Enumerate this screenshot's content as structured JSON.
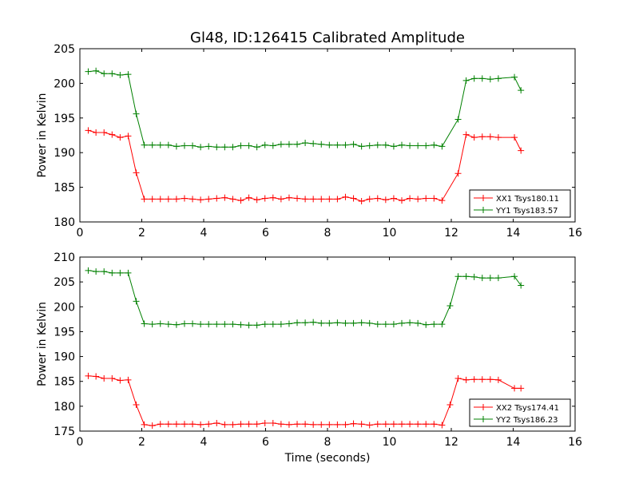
{
  "title": "Gl48, ID:126415 Calibrated Amplitude",
  "xlabel": "Time (seconds)",
  "chart_data": [
    {
      "type": "line",
      "title": "Gl48, ID:126415 Calibrated Amplitude",
      "xlabel": "",
      "ylabel": "Power in Kelvin",
      "xlim": [
        0,
        16
      ],
      "ylim": [
        180,
        205
      ],
      "xticks": [
        0,
        2,
        4,
        6,
        8,
        10,
        12,
        14,
        16
      ],
      "yticks": [
        180,
        185,
        190,
        195,
        200,
        205
      ],
      "grid": false,
      "legend_position": "lower-right",
      "x": [
        0.27,
        0.52,
        0.78,
        1.04,
        1.3,
        1.56,
        1.82,
        2.08,
        2.34,
        2.6,
        2.86,
        3.12,
        3.38,
        3.64,
        3.9,
        4.16,
        4.42,
        4.68,
        4.94,
        5.2,
        5.46,
        5.72,
        5.98,
        6.24,
        6.5,
        6.76,
        7.02,
        7.28,
        7.54,
        7.8,
        8.06,
        8.32,
        8.58,
        8.84,
        9.1,
        9.36,
        9.62,
        9.88,
        10.14,
        10.4,
        10.66,
        10.92,
        11.18,
        11.44,
        11.7,
        11.96,
        12.22,
        12.48,
        12.74,
        13.0,
        13.26,
        13.52,
        13.78,
        14.04,
        14.25
      ],
      "series": [
        {
          "name": "XX1 Tsys180.11",
          "color": "#ff0000",
          "values": [
            193.2,
            192.9,
            192.9,
            192.6,
            192.2,
            192.4,
            187.1,
            183.3,
            183.3,
            183.3,
            183.3,
            183.3,
            183.4,
            183.3,
            183.2,
            183.3,
            183.4,
            183.5,
            183.3,
            183.1,
            183.5,
            183.2,
            183.4,
            183.5,
            183.3,
            183.5,
            183.4,
            183.3,
            183.3,
            183.3,
            183.3,
            183.3,
            183.6,
            183.4,
            183.0,
            183.3,
            183.4,
            183.2,
            183.4,
            183.1,
            183.4,
            183.3,
            183.4,
            183.4,
            183.1,
            187.0,
            192.6,
            192.2,
            192.3,
            192.3,
            192.2,
            192.2,
            190.3,
            null,
            null
          ],
          "x_override": [
            0.27,
            0.52,
            0.78,
            1.04,
            1.3,
            1.56,
            1.82,
            2.08,
            2.34,
            2.6,
            2.86,
            3.12,
            3.38,
            3.64,
            3.9,
            4.16,
            4.42,
            4.68,
            4.94,
            5.2,
            5.46,
            5.72,
            5.98,
            6.24,
            6.5,
            6.76,
            7.02,
            7.28,
            7.54,
            7.8,
            8.06,
            8.32,
            8.58,
            8.84,
            9.1,
            9.36,
            9.62,
            9.88,
            10.14,
            10.4,
            10.66,
            10.92,
            11.18,
            11.44,
            11.7,
            12.22,
            12.48,
            12.74,
            13.0,
            13.26,
            13.52,
            14.04,
            14.25,
            null,
            null
          ]
        },
        {
          "name": "YY1 Tsys183.57",
          "color": "#008000",
          "values": [
            201.7,
            201.8,
            201.4,
            201.4,
            201.2,
            201.3,
            195.6,
            191.1,
            191.1,
            191.1,
            191.1,
            190.9,
            191.0,
            191.0,
            190.8,
            190.9,
            190.8,
            190.8,
            190.8,
            191.0,
            191.0,
            190.8,
            191.1,
            191.0,
            191.2,
            191.2,
            191.2,
            191.4,
            191.3,
            191.2,
            191.1,
            191.1,
            191.1,
            191.2,
            190.9,
            191.0,
            191.1,
            191.1,
            190.9,
            191.1,
            191.0,
            191.0,
            191.0,
            191.1,
            190.9,
            194.8,
            200.4,
            200.7,
            200.7,
            200.6,
            200.7,
            200.9,
            199.0,
            null,
            null
          ],
          "x_override": [
            0.27,
            0.52,
            0.78,
            1.04,
            1.3,
            1.56,
            1.82,
            2.08,
            2.34,
            2.6,
            2.86,
            3.12,
            3.38,
            3.64,
            3.9,
            4.16,
            4.42,
            4.68,
            4.94,
            5.2,
            5.46,
            5.72,
            5.98,
            6.24,
            6.5,
            6.76,
            7.02,
            7.28,
            7.54,
            7.8,
            8.06,
            8.32,
            8.58,
            8.84,
            9.1,
            9.36,
            9.62,
            9.88,
            10.14,
            10.4,
            10.66,
            10.92,
            11.18,
            11.44,
            11.7,
            12.22,
            12.48,
            12.74,
            13.0,
            13.26,
            13.52,
            14.04,
            14.25,
            null,
            null
          ]
        }
      ]
    },
    {
      "type": "line",
      "title": "",
      "xlabel": "Time (seconds)",
      "ylabel": "Power in Kelvin",
      "xlim": [
        0,
        16
      ],
      "ylim": [
        175,
        210
      ],
      "xticks": [
        0,
        2,
        4,
        6,
        8,
        10,
        12,
        14,
        16
      ],
      "yticks": [
        175,
        180,
        185,
        190,
        195,
        200,
        205,
        210
      ],
      "grid": false,
      "legend_position": "lower-right",
      "series": [
        {
          "name": "XX2 Tsys174.41",
          "color": "#ff0000",
          "x": [
            0.27,
            0.52,
            0.78,
            1.04,
            1.3,
            1.56,
            1.82,
            2.08,
            2.34,
            2.6,
            2.86,
            3.12,
            3.38,
            3.64,
            3.9,
            4.16,
            4.42,
            4.68,
            4.94,
            5.2,
            5.46,
            5.72,
            5.98,
            6.24,
            6.5,
            6.76,
            7.02,
            7.28,
            7.54,
            7.8,
            8.06,
            8.32,
            8.58,
            8.84,
            9.1,
            9.36,
            9.62,
            9.88,
            10.14,
            10.4,
            10.66,
            10.92,
            11.18,
            11.44,
            11.7,
            11.96,
            12.22,
            12.48,
            12.74,
            13.0,
            13.26,
            13.52,
            14.04,
            14.25
          ],
          "values": [
            186.1,
            186.0,
            185.6,
            185.6,
            185.2,
            185.3,
            180.3,
            176.3,
            176.1,
            176.4,
            176.4,
            176.4,
            176.4,
            176.4,
            176.3,
            176.4,
            176.6,
            176.3,
            176.3,
            176.4,
            176.4,
            176.4,
            176.6,
            176.6,
            176.4,
            176.3,
            176.4,
            176.4,
            176.3,
            176.3,
            176.3,
            176.3,
            176.3,
            176.5,
            176.4,
            176.2,
            176.4,
            176.4,
            176.4,
            176.4,
            176.4,
            176.4,
            176.4,
            176.4,
            176.2,
            180.3,
            185.6,
            185.3,
            185.4,
            185.4,
            185.4,
            185.3,
            183.6,
            183.6
          ]
        },
        {
          "name": "YY2 Tsys186.23",
          "color": "#008000",
          "x": [
            0.27,
            0.52,
            0.78,
            1.04,
            1.3,
            1.56,
            1.82,
            2.08,
            2.34,
            2.6,
            2.86,
            3.12,
            3.38,
            3.64,
            3.9,
            4.16,
            4.42,
            4.68,
            4.94,
            5.2,
            5.46,
            5.72,
            5.98,
            6.24,
            6.5,
            6.76,
            7.02,
            7.28,
            7.54,
            7.8,
            8.06,
            8.32,
            8.58,
            8.84,
            9.1,
            9.36,
            9.62,
            9.88,
            10.14,
            10.4,
            10.66,
            10.92,
            11.18,
            11.44,
            11.7,
            11.96,
            12.22,
            12.48,
            12.74,
            13.0,
            13.26,
            13.52,
            14.04,
            14.25
          ],
          "values": [
            207.3,
            207.1,
            207.1,
            206.8,
            206.8,
            206.8,
            201.1,
            196.6,
            196.5,
            196.6,
            196.5,
            196.4,
            196.6,
            196.6,
            196.5,
            196.5,
            196.5,
            196.5,
            196.5,
            196.4,
            196.3,
            196.3,
            196.5,
            196.5,
            196.5,
            196.6,
            196.8,
            196.8,
            196.9,
            196.7,
            196.7,
            196.8,
            196.7,
            196.7,
            196.8,
            196.7,
            196.5,
            196.5,
            196.5,
            196.7,
            196.8,
            196.7,
            196.4,
            196.5,
            196.5,
            200.2,
            206.1,
            206.1,
            206.0,
            205.8,
            205.8,
            205.8,
            206.1,
            204.3
          ]
        }
      ]
    }
  ]
}
